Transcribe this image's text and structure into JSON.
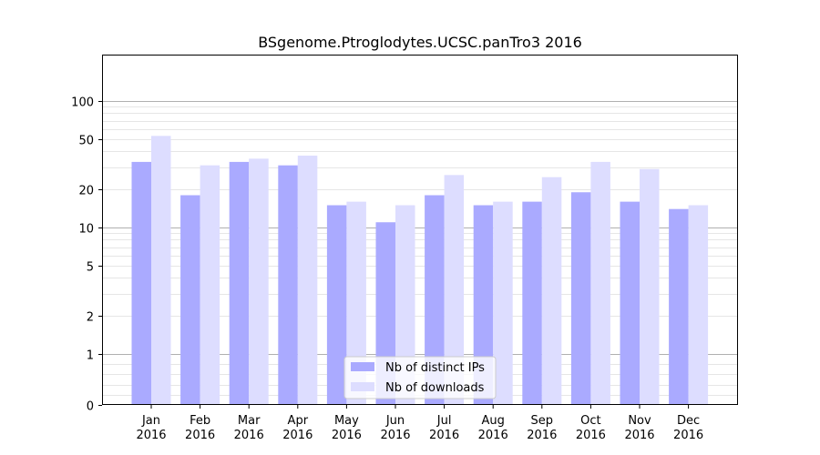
{
  "chart_data": {
    "type": "bar",
    "title": "BSgenome.Ptroglodytes.UCSC.panTro3 2016",
    "xlabel": "",
    "ylabel": "",
    "y_scale": "symlog",
    "grid": "horizontal",
    "legend_position": "bottom-center",
    "categories": [
      [
        "Jan",
        "2016"
      ],
      [
        "Feb",
        "2016"
      ],
      [
        "Mar",
        "2016"
      ],
      [
        "Apr",
        "2016"
      ],
      [
        "May",
        "2016"
      ],
      [
        "Jun",
        "2016"
      ],
      [
        "Jul",
        "2016"
      ],
      [
        "Aug",
        "2016"
      ],
      [
        "Sep",
        "2016"
      ],
      [
        "Oct",
        "2016"
      ],
      [
        "Nov",
        "2016"
      ],
      [
        "Dec",
        "2016"
      ]
    ],
    "y_ticks": [
      {
        "value": 0,
        "label": "0"
      },
      {
        "value": 1,
        "label": "1"
      },
      {
        "value": 2,
        "label": "2"
      },
      {
        "value": 5,
        "label": "5"
      },
      {
        "value": 10,
        "label": "10"
      },
      {
        "value": 20,
        "label": "20"
      },
      {
        "value": 50,
        "label": "50"
      },
      {
        "value": 100,
        "label": "100"
      }
    ],
    "series": [
      {
        "name": "Nb of distinct IPs",
        "color": "#aaaaff",
        "values": [
          33,
          18,
          33,
          31,
          15,
          11,
          18,
          15,
          16,
          19,
          16,
          14
        ]
      },
      {
        "name": "Nb of downloads",
        "color": "#ddddff",
        "values": [
          53,
          31,
          35,
          37,
          16,
          15,
          26,
          16,
          25,
          33,
          29,
          15
        ]
      }
    ]
  }
}
